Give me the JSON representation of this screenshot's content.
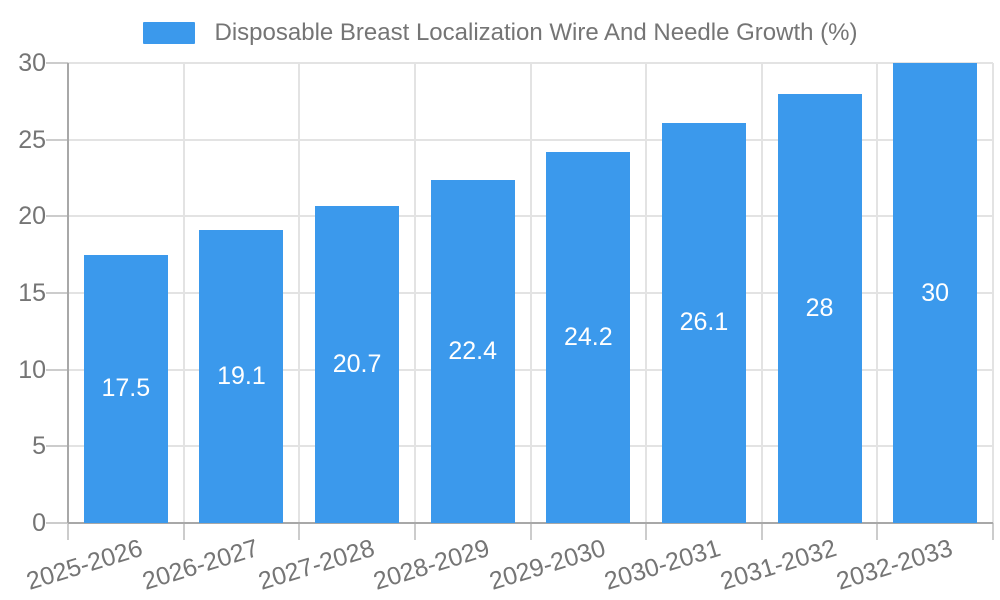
{
  "chart_data": {
    "type": "bar",
    "title": "Disposable Breast Localization Wire And Needle Growth (%)",
    "categories": [
      "2025-2026",
      "2026-2027",
      "2027-2028",
      "2028-2029",
      "2029-2030",
      "2030-2031",
      "2031-2032",
      "2032-2033"
    ],
    "values": [
      17.5,
      19.1,
      20.7,
      22.4,
      24.2,
      26.1,
      28,
      30
    ],
    "value_labels": [
      "17.5",
      "19.1",
      "20.7",
      "22.4",
      "24.2",
      "26.1",
      "28",
      "30"
    ],
    "xlabel": "",
    "ylabel": "",
    "ylim": [
      0,
      30
    ],
    "ytick_step": 5,
    "ytick_labels": [
      "0",
      "5",
      "10",
      "15",
      "20",
      "25",
      "30"
    ],
    "grid": true,
    "legend_position": "top",
    "x_label_rotation_deg": -17,
    "colors": {
      "bar": "#3b99ec",
      "bar_value_text": "#ffffff",
      "grid_line": "#e3e3e3",
      "axis_line": "#a8a8a8",
      "tick_mark": "#cccccc",
      "axis_text": "#757575",
      "background": "#ffffff"
    }
  }
}
